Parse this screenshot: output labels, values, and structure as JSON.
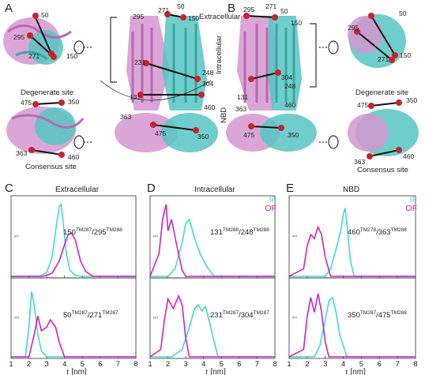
{
  "panels": {
    "A": {
      "letter": "A"
    },
    "B": {
      "letter": "B"
    },
    "C": {
      "letter": "C",
      "title": "Extracellular"
    },
    "D": {
      "letter": "D",
      "title": "Intracellular"
    },
    "E": {
      "letter": "E",
      "title": "NBD"
    }
  },
  "structure_labels": {
    "extracellular": "Extracellular",
    "intracellular": "Intracellular",
    "nbd": "NBD",
    "degenerate_site": "Degenerate site",
    "consensus_site": "Consensus site",
    "residues": [
      "50",
      "295",
      "271",
      "150",
      "231",
      "248",
      "304",
      "131",
      "460",
      "363",
      "475",
      "350"
    ]
  },
  "legend": {
    "if": "IF",
    "of": "OF"
  },
  "colors": {
    "if": "#3fd9d6",
    "of": "#cc22cc",
    "protein_a": "#d596d0",
    "protein_b": "#56c6c2",
    "residue": "#c8232c"
  },
  "axes": {
    "xlabel": "r [nm]",
    "ylabel": "p(r)",
    "xticks": [
      "1",
      "2",
      "3",
      "4",
      "5",
      "6",
      "7",
      "8"
    ]
  },
  "pair_labels": {
    "c_top": {
      "a": "150",
      "a_sup": "TM287",
      "b": "295",
      "b_sup": "TM288"
    },
    "c_bot": {
      "a": "50",
      "a_sup": "TM287",
      "b": "271",
      "b_sup": "TM287"
    },
    "d_top": {
      "a": "131",
      "a_sup": "TM288",
      "b": "248",
      "b_sup": "TM288"
    },
    "d_bot": {
      "a": "231",
      "a_sup": "TM287",
      "b": "304",
      "b_sup": "TM287"
    },
    "e_top": {
      "a": "460",
      "a_sup": "TM278",
      "b": "363",
      "b_sup": "TM288"
    },
    "e_bot": {
      "a": "350",
      "a_sup": "TM287",
      "b": "475",
      "b_sup": "TM288"
    }
  },
  "chart_data": [
    {
      "type": "line",
      "title": "Extracellular",
      "pair": "150TM287/295TM288",
      "xlabel": "r [nm]",
      "ylabel": "p(r)",
      "xlim": [
        1,
        8
      ],
      "series": [
        {
          "name": "IF",
          "x": [
            1.0,
            2.6,
            3.0,
            3.3,
            3.5,
            3.7,
            3.8,
            3.9,
            4.1,
            4.3,
            4.6,
            5.0,
            8.0
          ],
          "y": [
            0,
            0,
            0.05,
            0.25,
            0.6,
            0.92,
            0.95,
            0.75,
            0.3,
            0.08,
            0.01,
            0,
            0
          ]
        },
        {
          "name": "OF",
          "x": [
            1.0,
            2.8,
            3.3,
            3.7,
            4.0,
            4.2,
            4.4,
            4.6,
            4.9,
            5.2,
            5.6,
            8.0
          ],
          "y": [
            0,
            0,
            0.04,
            0.2,
            0.42,
            0.55,
            0.57,
            0.48,
            0.2,
            0.06,
            0,
            0
          ]
        }
      ]
    },
    {
      "type": "line",
      "title": "Extracellular",
      "pair": "50TM287/271TM287",
      "xlabel": "r [nm]",
      "ylabel": "p(r)",
      "xlim": [
        1,
        8
      ],
      "series": [
        {
          "name": "IF",
          "x": [
            1.0,
            1.8,
            2.0,
            2.15,
            2.3,
            2.5,
            2.7,
            3.0,
            8.0
          ],
          "y": [
            0,
            0,
            0.4,
            0.88,
            0.7,
            0.3,
            0.08,
            0,
            0
          ]
        },
        {
          "name": "OF",
          "x": [
            1.0,
            2.0,
            2.3,
            2.5,
            2.7,
            3.0,
            3.2,
            3.5,
            3.7,
            4.0,
            8.0
          ],
          "y": [
            0,
            0,
            0.3,
            0.55,
            0.35,
            0.4,
            0.5,
            0.4,
            0.2,
            0,
            0
          ]
        }
      ]
    },
    {
      "type": "line",
      "title": "Intracellular",
      "pair": "131TM288/248TM288",
      "xlabel": "r [nm]",
      "ylabel": "p(r)",
      "xlim": [
        1,
        8
      ],
      "series": [
        {
          "name": "IF",
          "x": [
            1.0,
            2.0,
            2.4,
            2.8,
            3.0,
            3.2,
            3.5,
            3.8,
            4.2,
            4.6,
            8.0
          ],
          "y": [
            0,
            0,
            0.1,
            0.45,
            0.7,
            0.75,
            0.5,
            0.3,
            0.12,
            0,
            0
          ]
        },
        {
          "name": "OF",
          "x": [
            1.0,
            1.5,
            1.7,
            1.9,
            2.0,
            2.2,
            2.5,
            2.8,
            3.0,
            8.0
          ],
          "y": [
            0,
            0.3,
            0.75,
            0.95,
            0.6,
            0.75,
            0.4,
            0.08,
            0,
            0
          ]
        }
      ]
    },
    {
      "type": "line",
      "title": "Intracellular",
      "pair": "231TM287/304TM287",
      "xlabel": "r [nm]",
      "ylabel": "p(r)",
      "xlim": [
        1,
        8
      ],
      "series": [
        {
          "name": "IF",
          "x": [
            1.0,
            2.2,
            2.8,
            3.2,
            3.5,
            3.7,
            3.9,
            4.1,
            4.3,
            4.5,
            4.8,
            8.0
          ],
          "y": [
            0,
            0,
            0.1,
            0.4,
            0.65,
            0.7,
            0.62,
            0.68,
            0.5,
            0.3,
            0,
            0
          ]
        },
        {
          "name": "OF",
          "x": [
            1.0,
            1.6,
            1.8,
            2.0,
            2.3,
            2.6,
            2.8,
            3.0,
            3.2,
            8.0
          ],
          "y": [
            0,
            0.1,
            0.5,
            0.78,
            0.65,
            0.82,
            0.7,
            0.25,
            0,
            0
          ]
        }
      ]
    },
    {
      "type": "line",
      "title": "NBD",
      "pair": "460TM278/363TM288",
      "xlabel": "r [nm]",
      "ylabel": "p(r)",
      "xlim": [
        1,
        8
      ],
      "series": [
        {
          "name": "IF",
          "x": [
            1.0,
            3.0,
            3.3,
            3.7,
            3.9,
            4.0,
            4.1,
            4.2,
            4.4,
            4.6,
            8.0
          ],
          "y": [
            0,
            0,
            0.1,
            0.45,
            0.65,
            0.82,
            0.9,
            0.7,
            0.2,
            0,
            0
          ]
        },
        {
          "name": "OF",
          "x": [
            1.0,
            1.8,
            2.0,
            2.2,
            2.4,
            2.6,
            2.8,
            3.0,
            3.3,
            8.0
          ],
          "y": [
            0,
            0.1,
            0.4,
            0.55,
            0.5,
            0.65,
            0.55,
            0.25,
            0,
            0
          ]
        }
      ]
    },
    {
      "type": "line",
      "title": "NBD",
      "pair": "350TM287/475TM288",
      "xlabel": "r [nm]",
      "ylabel": "p(r)",
      "xlim": [
        1,
        8
      ],
      "series": [
        {
          "name": "IF",
          "x": [
            1.0,
            2.4,
            2.7,
            3.0,
            3.2,
            3.4,
            3.6,
            3.8,
            4.2,
            8.0
          ],
          "y": [
            0,
            0,
            0.15,
            0.5,
            0.75,
            0.8,
            0.6,
            0.3,
            0,
            0
          ]
        },
        {
          "name": "OF",
          "x": [
            1.0,
            1.8,
            2.0,
            2.2,
            2.4,
            2.6,
            2.8,
            3.0,
            3.2,
            8.0
          ],
          "y": [
            0,
            0.1,
            0.55,
            0.8,
            0.6,
            0.85,
            0.6,
            0.2,
            0,
            0
          ]
        }
      ]
    }
  ]
}
